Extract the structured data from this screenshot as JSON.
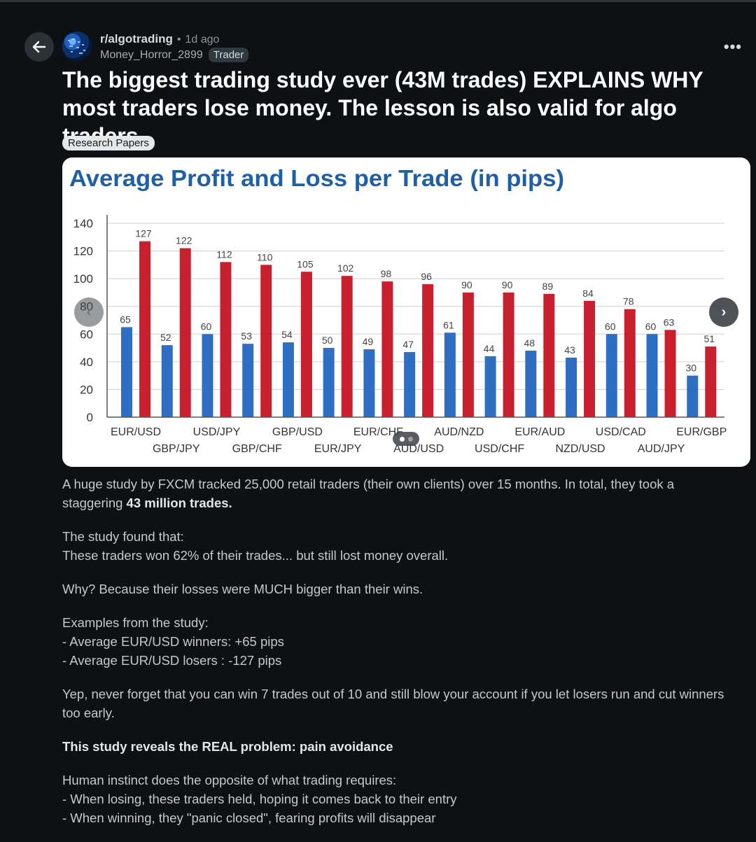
{
  "post": {
    "subreddit": "r/algotrading",
    "separator": "•",
    "time_ago": "1d ago",
    "author": "Money_Horror_2899",
    "author_flair": "Trader",
    "more_label": "•••",
    "title": "The biggest trading study ever (43M trades) EXPLAINS WHY most traders lose money. The lesson is also valid for algo traders.",
    "post_flair": "Research Papers"
  },
  "carousel": {
    "prev_icon": "‹",
    "next_icon": "›",
    "page_count": 2,
    "current_page": 1
  },
  "body": {
    "p1_text": "A huge study by FXCM tracked 25,000 retail traders (their own clients) over 15 months. In total, they took a staggering ",
    "p1_bold": "43 million trades.",
    "p2_line1": "The study found that:",
    "p2_line2": "These traders won 62% of their trades... but still lost money overall.",
    "p3": "Why? Because their losses were MUCH bigger than their wins.",
    "p4_line1": "Examples from the study:",
    "p4_line2": "- Average EUR/USD winners: +65 pips",
    "p4_line3": "- Average EUR/USD losers : -127 pips",
    "p5": "Yep, never forget that you can win 7 trades out of 10 and still blow your account if you let losers run and cut winners too early.",
    "p6_bold": "This study reveals the REAL problem: pain avoidance",
    "p7_line1": "Human instinct does the opposite of what trading requires:",
    "p7_line2": "- When losing, these traders held, hoping it comes back to their entry",
    "p7_line3": "- When winning, they \"panic closed\", fearing profits will disappear"
  },
  "colors": {
    "wins": "#2e6fc4",
    "losses": "#c8202e",
    "title": "#1f5fa6"
  },
  "chart_data": {
    "type": "bar",
    "title": "Average Profit and Loss per Trade (in pips)",
    "xlabel": "",
    "ylabel": "",
    "ylim": [
      0,
      140
    ],
    "yticks": [
      0,
      20,
      40,
      60,
      80,
      100,
      120,
      140
    ],
    "grid": true,
    "legend": "none",
    "categories": [
      "EUR/USD",
      "GBP/JPY",
      "USD/JPY",
      "GBP/CHF",
      "GBP/USD",
      "EUR/JPY",
      "EUR/CHF",
      "AUD/USD",
      "AUD/NZD",
      "USD/CHF",
      "EUR/AUD",
      "NZD/USD",
      "USD/CAD",
      "AUD/JPY",
      "EUR/GBP"
    ],
    "series": [
      {
        "values": [
          65,
          52,
          60,
          53,
          54,
          50,
          49,
          47,
          61,
          44,
          48,
          43,
          60,
          60,
          30
        ]
      },
      {
        "values": [
          127,
          122,
          112,
          110,
          105,
          102,
          98,
          96,
          90,
          90,
          89,
          84,
          78,
          63,
          51
        ]
      }
    ]
  }
}
